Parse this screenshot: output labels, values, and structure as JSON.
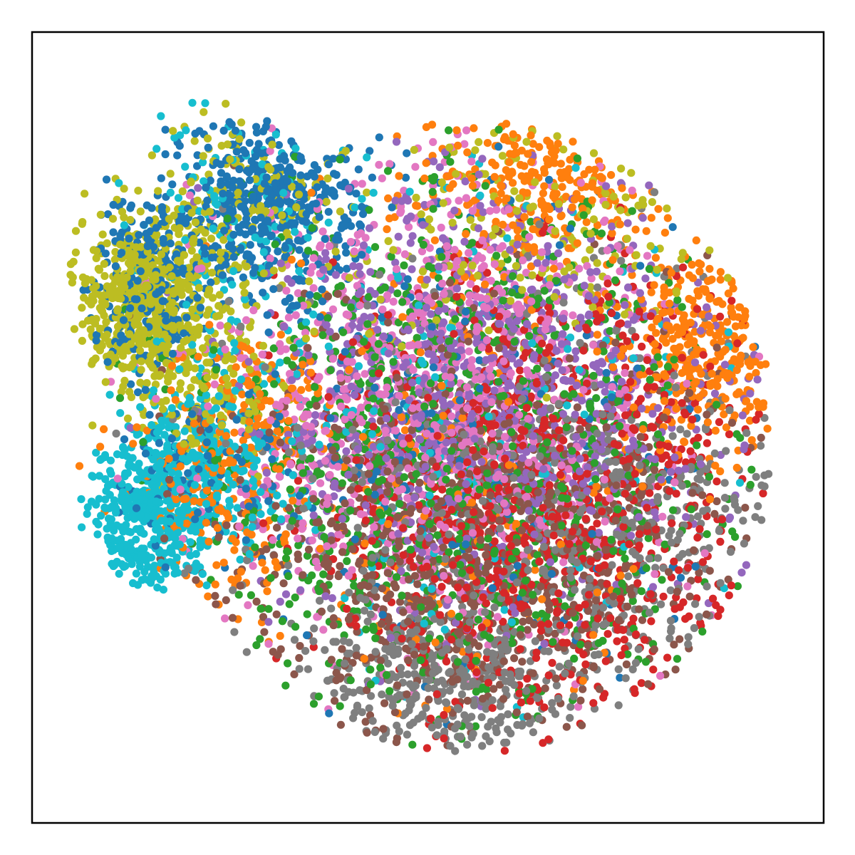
{
  "chart_data": {
    "type": "scatter",
    "title": "",
    "xlabel": "",
    "ylabel": "",
    "xlim": [
      -80,
      80
    ],
    "ylim": [
      -80,
      80
    ],
    "show_ticks": false,
    "grid": false,
    "legend": "none",
    "point_count_per_series": 1000,
    "series": [
      {
        "color": "#1f77b4",
        "clusters": [
          {
            "x": -32,
            "y": 46,
            "sx": 9,
            "sy": 9,
            "w": 0.45
          },
          {
            "x": -56,
            "y": 30,
            "sx": 7,
            "sy": 9,
            "w": 0.2
          },
          {
            "x": -44,
            "y": -8,
            "sx": 8,
            "sy": 8,
            "w": 0.12
          },
          {
            "x": 5,
            "y": 0,
            "sx": 25,
            "sy": 28,
            "w": 0.23
          }
        ]
      },
      {
        "color": "#ff7f0e",
        "clusters": [
          {
            "x": 56,
            "y": 16,
            "sx": 8,
            "sy": 9,
            "w": 0.32
          },
          {
            "x": 22,
            "y": 50,
            "sx": 11,
            "sy": 8,
            "w": 0.23
          },
          {
            "x": -42,
            "y": -14,
            "sx": 10,
            "sy": 12,
            "w": 0.17
          },
          {
            "x": -35,
            "y": 5,
            "sx": 8,
            "sy": 8,
            "w": 0.08
          },
          {
            "x": 5,
            "y": -5,
            "sx": 25,
            "sy": 28,
            "w": 0.2
          }
        ]
      },
      {
        "color": "#2ca02c",
        "clusters": [
          {
            "x": 6,
            "y": -8,
            "sx": 27,
            "sy": 30,
            "w": 1.0
          }
        ]
      },
      {
        "color": "#d62728",
        "clusters": [
          {
            "x": 24,
            "y": -14,
            "sx": 22,
            "sy": 24,
            "w": 1.0
          }
        ]
      },
      {
        "color": "#9467bd",
        "clusters": [
          {
            "x": 12,
            "y": 6,
            "sx": 24,
            "sy": 20,
            "w": 1.0
          }
        ]
      },
      {
        "color": "#8c564b",
        "clusters": [
          {
            "x": 8,
            "y": -24,
            "sx": 26,
            "sy": 20,
            "w": 1.0
          }
        ]
      },
      {
        "color": "#e377c2",
        "clusters": [
          {
            "x": 0,
            "y": 8,
            "sx": 22,
            "sy": 24,
            "w": 1.0
          }
        ]
      },
      {
        "color": "#7f7f7f",
        "clusters": [
          {
            "x": 4,
            "y": -50,
            "sx": 14,
            "sy": 9,
            "w": 0.35
          },
          {
            "x": 40,
            "y": -18,
            "sx": 16,
            "sy": 12,
            "w": 0.3
          },
          {
            "x": 8,
            "y": -18,
            "sx": 26,
            "sy": 26,
            "w": 0.35
          }
        ]
      },
      {
        "color": "#bcbd22",
        "clusters": [
          {
            "x": -58,
            "y": 26,
            "sx": 7,
            "sy": 9,
            "w": 0.48
          },
          {
            "x": -38,
            "y": 42,
            "sx": 10,
            "sy": 12,
            "w": 0.2
          },
          {
            "x": -46,
            "y": 8,
            "sx": 8,
            "sy": 8,
            "w": 0.12
          },
          {
            "x": 22,
            "y": 40,
            "sx": 18,
            "sy": 12,
            "w": 0.2
          }
        ]
      },
      {
        "color": "#17becf",
        "clusters": [
          {
            "x": -56,
            "y": -18,
            "sx": 6,
            "sy": 8,
            "w": 0.42
          },
          {
            "x": -44,
            "y": -6,
            "sx": 9,
            "sy": 10,
            "w": 0.25
          },
          {
            "x": -40,
            "y": 40,
            "sx": 12,
            "sy": 12,
            "w": 0.12
          },
          {
            "x": 8,
            "y": 0,
            "sx": 26,
            "sy": 30,
            "w": 0.21
          }
        ]
      }
    ]
  }
}
